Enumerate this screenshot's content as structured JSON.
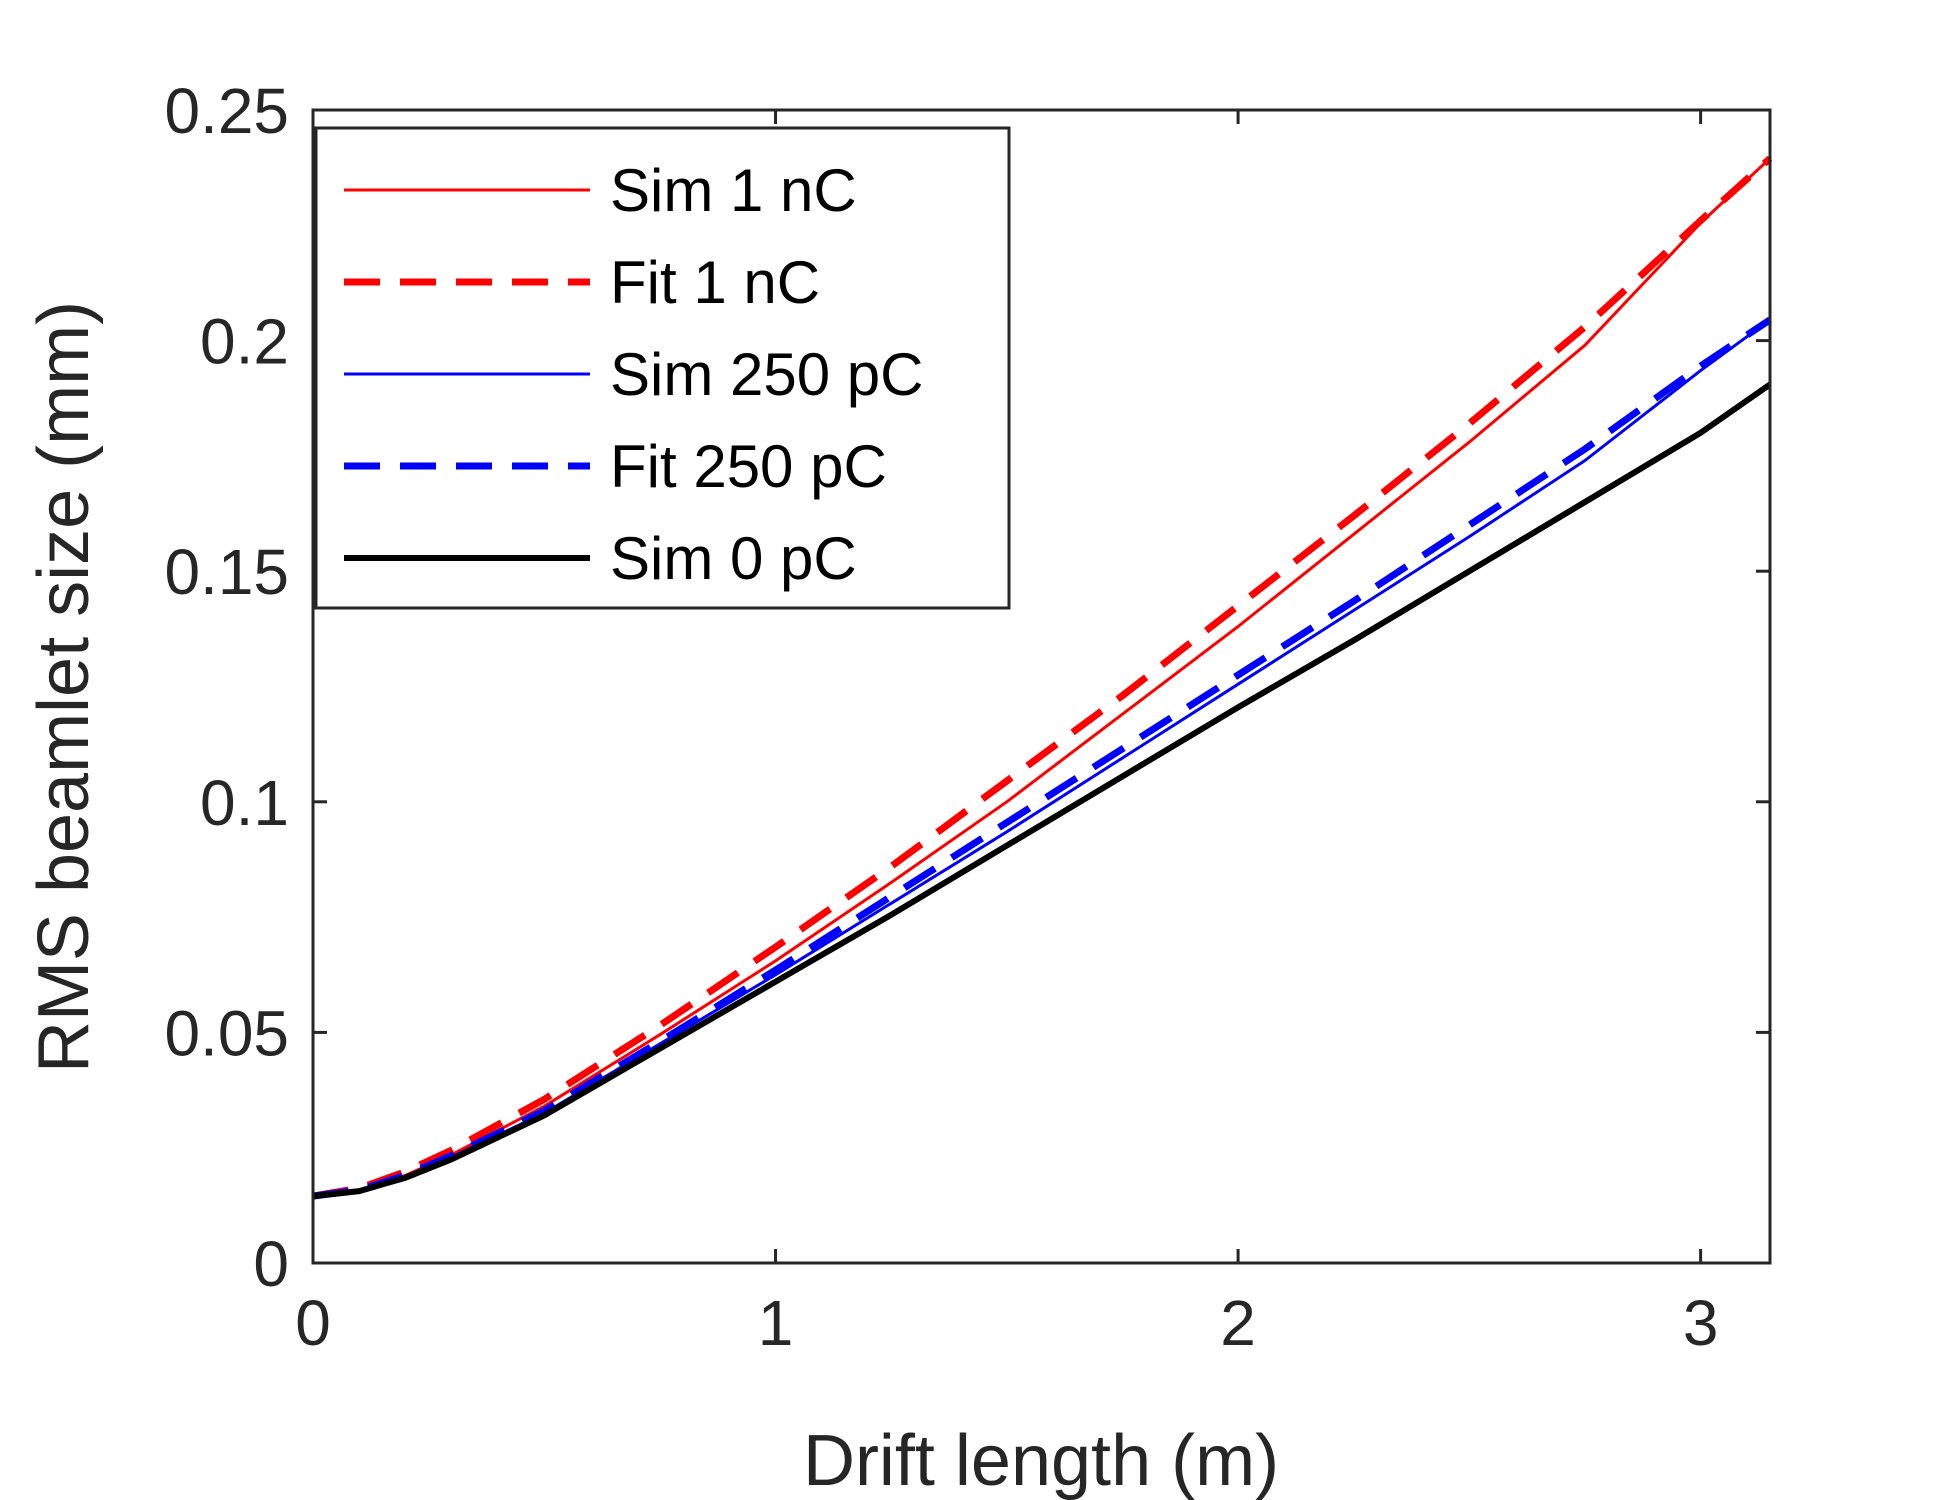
{
  "chart_data": {
    "type": "line",
    "xlabel": "Drift length (m)",
    "ylabel": "RMS beamlet size (mm)",
    "xlim": [
      0,
      3.15
    ],
    "ylim": [
      0,
      0.25
    ],
    "xticks": [
      0,
      1,
      2,
      3
    ],
    "xtick_labels": [
      "0",
      "1",
      "2",
      "3"
    ],
    "yticks": [
      0,
      0.05,
      0.1,
      0.15,
      0.2,
      0.25
    ],
    "ytick_labels": [
      "0",
      "0.05",
      "0.1",
      "0.15",
      "0.2",
      "0.25"
    ],
    "grid": false,
    "legend_position": "top-left",
    "series": [
      {
        "name": "Sim 1 nC",
        "color": "#ff0000",
        "style": "solid",
        "x": [
          0,
          0.1,
          0.2,
          0.3,
          0.5,
          0.75,
          1.0,
          1.25,
          1.5,
          1.75,
          2.0,
          2.25,
          2.5,
          2.75,
          3.0,
          3.15
        ],
        "y": [
          0.0145,
          0.0158,
          0.019,
          0.0235,
          0.034,
          0.0495,
          0.0655,
          0.0825,
          0.1,
          0.119,
          0.138,
          0.158,
          0.178,
          0.199,
          0.2255,
          0.2395
        ]
      },
      {
        "name": "Fit 1 nC",
        "color": "#ff0000",
        "style": "dashed",
        "x": [
          0,
          0.1,
          0.2,
          0.3,
          0.5,
          0.75,
          1.0,
          1.25,
          1.5,
          1.75,
          2.0,
          2.25,
          2.5,
          2.75,
          3.0,
          3.15
        ],
        "y": [
          0.0145,
          0.0162,
          0.0198,
          0.0245,
          0.0355,
          0.0515,
          0.0685,
          0.086,
          0.1045,
          0.123,
          0.1425,
          0.162,
          0.182,
          0.203,
          0.226,
          0.2395
        ]
      },
      {
        "name": "Sim 250 pC",
        "color": "#0000ff",
        "style": "solid",
        "x": [
          0,
          0.1,
          0.2,
          0.3,
          0.5,
          0.75,
          1.0,
          1.25,
          1.5,
          1.75,
          2.0,
          2.25,
          2.5,
          2.75,
          3.0,
          3.15
        ],
        "y": [
          0.0145,
          0.0157,
          0.0188,
          0.023,
          0.0325,
          0.0475,
          0.0625,
          0.078,
          0.0935,
          0.1095,
          0.1255,
          0.1415,
          0.1575,
          0.174,
          0.1935,
          0.2045
        ]
      },
      {
        "name": "Fit 250 pC",
        "color": "#0000ff",
        "style": "dashed",
        "x": [
          0,
          0.1,
          0.2,
          0.3,
          0.5,
          0.75,
          1.0,
          1.25,
          1.5,
          1.75,
          2.0,
          2.25,
          2.5,
          2.75,
          3.0,
          3.15
        ],
        "y": [
          0.0145,
          0.0158,
          0.019,
          0.0233,
          0.033,
          0.048,
          0.0635,
          0.0795,
          0.0955,
          0.1115,
          0.1275,
          0.1435,
          0.16,
          0.1765,
          0.1945,
          0.2045
        ]
      },
      {
        "name": "Sim 0 pC",
        "color": "#000000",
        "style": "solid-thick",
        "x": [
          0,
          0.1,
          0.2,
          0.3,
          0.5,
          0.75,
          1.0,
          1.25,
          1.5,
          1.75,
          2.0,
          2.25,
          2.5,
          2.75,
          3.0,
          3.15
        ],
        "y": [
          0.0145,
          0.0156,
          0.0185,
          0.0225,
          0.032,
          0.0465,
          0.061,
          0.0755,
          0.0905,
          0.1055,
          0.1205,
          0.135,
          0.15,
          0.165,
          0.18,
          0.1905
        ]
      }
    ]
  }
}
